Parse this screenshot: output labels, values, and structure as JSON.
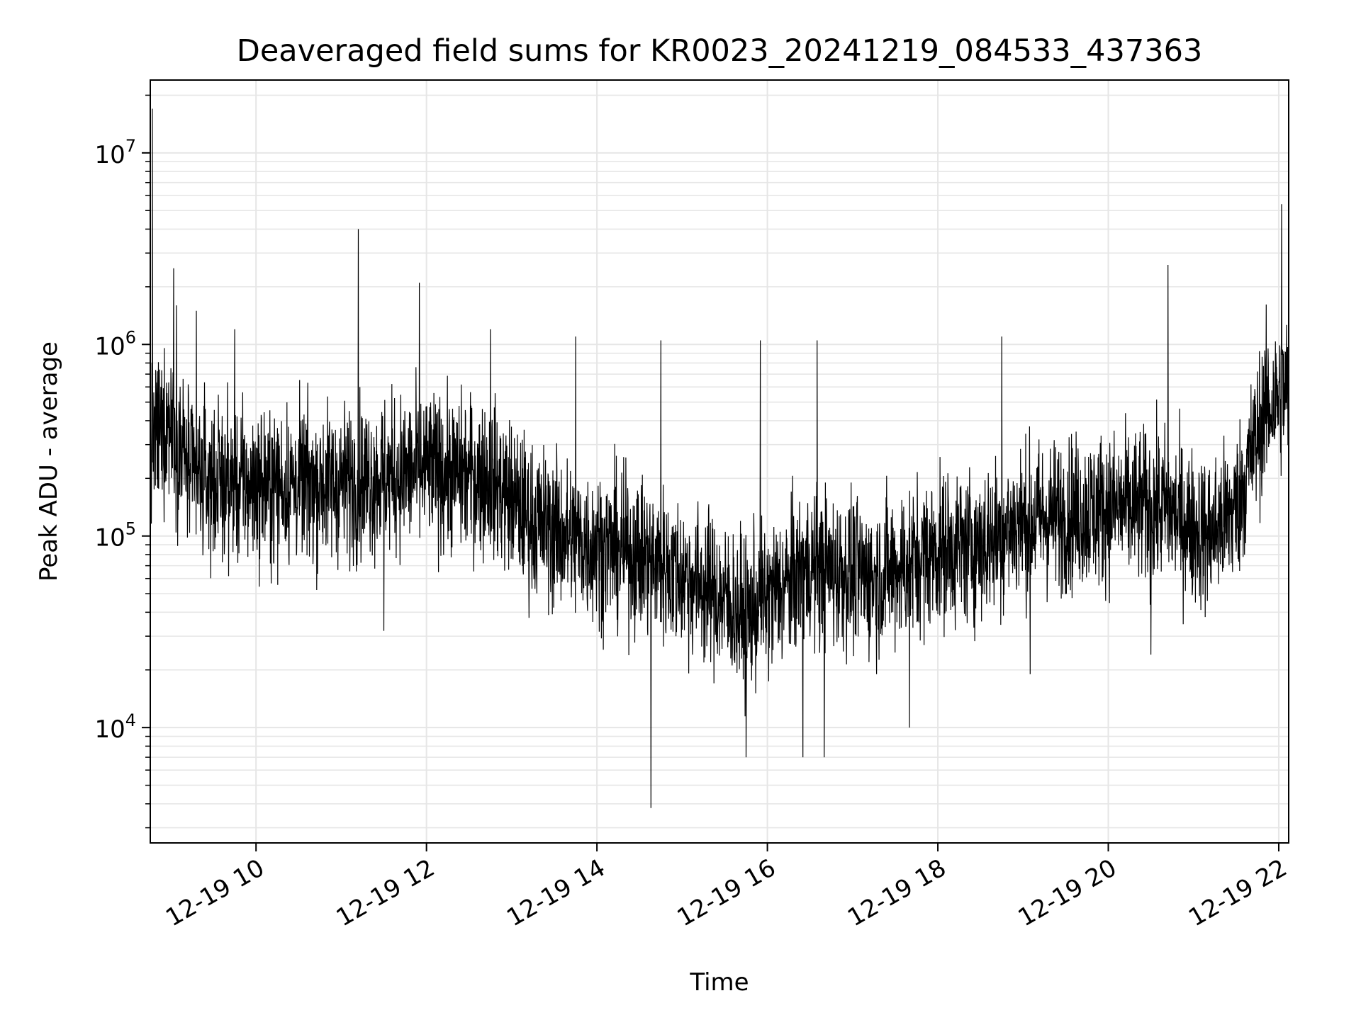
{
  "chart_data": {
    "type": "line",
    "title": "Deaveraged field sums for KR0023_20241219_084533_437363",
    "xlabel": "Time",
    "ylabel": "Peak ADU - average",
    "yscale": "log",
    "xlim": [
      "2024-12-19 08:45:33",
      "2024-12-19 22:07"
    ],
    "ylim": [
      2500,
      24000000
    ],
    "x_ticks": [
      "2024-12-19 10:00",
      "2024-12-19 12:00",
      "2024-12-19 14:00",
      "2024-12-19 16:00",
      "2024-12-19 18:00",
      "2024-12-19 20:00",
      "2024-12-19 22:00"
    ],
    "x_tick_labels": [
      "12-19 10",
      "12-19 12",
      "12-19 14",
      "12-19 16",
      "12-19 18",
      "12-19 20",
      "12-19 22"
    ],
    "y_ticks": [
      10000,
      100000,
      1000000,
      10000000
    ],
    "y_tick_labels": [
      {
        "base": "10",
        "exp": "4"
      },
      {
        "base": "10",
        "exp": "5"
      },
      {
        "base": "10",
        "exp": "6"
      },
      {
        "base": "10",
        "exp": "7"
      }
    ],
    "grid": true,
    "line_color": "#000000",
    "grid_color": "#e6e6e6",
    "trend": [
      {
        "x": "2024-12-19 08:46",
        "y": 300000
      },
      {
        "x": "2024-12-19 09:00",
        "y": 420000
      },
      {
        "x": "2024-12-19 09:15",
        "y": 200000
      },
      {
        "x": "2024-12-19 10:00",
        "y": 180000
      },
      {
        "x": "2024-12-19 11:00",
        "y": 190000
      },
      {
        "x": "2024-12-19 12:00",
        "y": 220000
      },
      {
        "x": "2024-12-19 12:45",
        "y": 200000
      },
      {
        "x": "2024-12-19 13:15",
        "y": 120000
      },
      {
        "x": "2024-12-19 13:45",
        "y": 95000
      },
      {
        "x": "2024-12-19 14:30",
        "y": 80000
      },
      {
        "x": "2024-12-19 15:15",
        "y": 55000
      },
      {
        "x": "2024-12-19 15:45",
        "y": 38000
      },
      {
        "x": "2024-12-19 16:30",
        "y": 70000
      },
      {
        "x": "2024-12-19 17:15",
        "y": 60000
      },
      {
        "x": "2024-12-19 18:00",
        "y": 85000
      },
      {
        "x": "2024-12-19 18:30",
        "y": 90000
      },
      {
        "x": "2024-12-19 19:00",
        "y": 120000
      },
      {
        "x": "2024-12-19 20:00",
        "y": 140000
      },
      {
        "x": "2024-12-19 20:40",
        "y": 140000
      },
      {
        "x": "2024-12-19 21:10",
        "y": 100000
      },
      {
        "x": "2024-12-19 21:30",
        "y": 140000
      },
      {
        "x": "2024-12-19 21:50",
        "y": 450000
      },
      {
        "x": "2024-12-19 22:07",
        "y": 600000
      }
    ],
    "spikes": [
      {
        "x": "2024-12-19 08:47",
        "y": 17000000
      },
      {
        "x": "2024-12-19 09:02",
        "y": 2500000
      },
      {
        "x": "2024-12-19 09:04",
        "y": 1600000
      },
      {
        "x": "2024-12-19 09:18",
        "y": 1500000
      },
      {
        "x": "2024-12-19 09:45",
        "y": 1200000
      },
      {
        "x": "2024-12-19 11:12",
        "y": 4000000
      },
      {
        "x": "2024-12-19 11:55",
        "y": 2100000
      },
      {
        "x": "2024-12-19 12:45",
        "y": 1200000
      },
      {
        "x": "2024-12-19 13:45",
        "y": 1100000
      },
      {
        "x": "2024-12-19 14:45",
        "y": 1050000
      },
      {
        "x": "2024-12-19 15:55",
        "y": 1050000
      },
      {
        "x": "2024-12-19 16:35",
        "y": 1050000
      },
      {
        "x": "2024-12-19 18:45",
        "y": 1100000
      },
      {
        "x": "2024-12-19 20:42",
        "y": 2600000
      },
      {
        "x": "2024-12-19 22:02",
        "y": 5400000
      },
      {
        "x": "2024-12-19 14:38",
        "y": 3800
      },
      {
        "x": "2024-12-19 15:45",
        "y": 7000
      },
      {
        "x": "2024-12-19 16:25",
        "y": 7000
      },
      {
        "x": "2024-12-19 16:40",
        "y": 7000
      },
      {
        "x": "2024-12-19 17:40",
        "y": 10000
      },
      {
        "x": "2024-12-19 19:05",
        "y": 19000
      },
      {
        "x": "2024-12-19 20:30",
        "y": 24000
      },
      {
        "x": "2024-12-19 11:30",
        "y": 32000
      }
    ]
  }
}
